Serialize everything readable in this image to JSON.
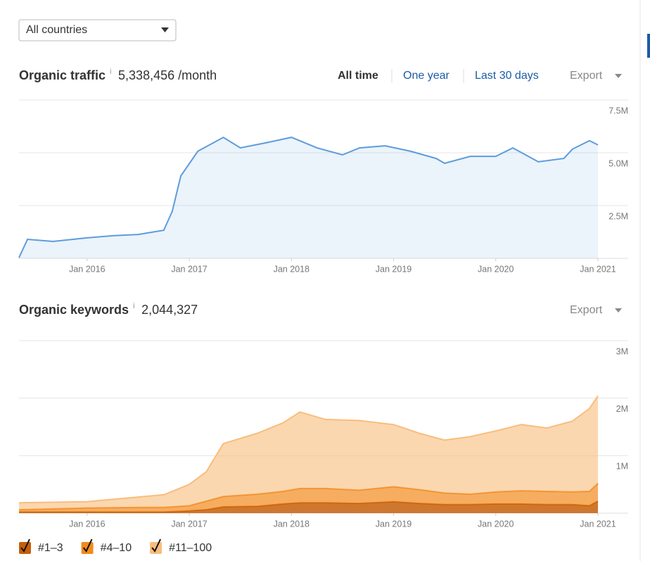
{
  "filter": {
    "country": "All countries"
  },
  "chart_data": [
    {
      "type": "area",
      "title": "Organic traffic",
      "info": "i",
      "summary": "5,338,456 /month",
      "range_options": [
        "All time",
        "One year",
        "Last 30 days"
      ],
      "selected_range": 0,
      "export": "Export",
      "x": [
        "2015-05",
        "2015-06",
        "2015-09",
        "2016-01",
        "2016-04",
        "2016-07",
        "2016-10",
        "2016-11",
        "2016-12",
        "2017-02",
        "2017-05",
        "2017-07",
        "2017-10",
        "2018-01",
        "2018-04",
        "2018-07",
        "2018-09",
        "2018-12",
        "2019-03",
        "2019-06",
        "2019-07",
        "2019-10",
        "2020-01",
        "2020-03",
        "2020-06",
        "2020-09",
        "2020-10",
        "2020-12",
        "2021-01"
      ],
      "series": [
        {
          "name": "Organic traffic",
          "color": "#5d9cdb",
          "values": [
            30000,
            900000,
            800000,
            970000,
            1070000,
            1130000,
            1330000,
            2230000,
            3900000,
            5070000,
            5730000,
            5230000,
            5470000,
            5730000,
            5230000,
            4900000,
            5230000,
            5330000,
            5070000,
            4730000,
            4500000,
            4830000,
            4830000,
            5230000,
            4570000,
            4730000,
            5170000,
            5570000,
            5370000
          ]
        }
      ],
      "xlim": [
        "2015-05",
        "2021-01"
      ],
      "xticks": [
        {
          "value": "2016-01",
          "label": "Jan 2016"
        },
        {
          "value": "2017-01",
          "label": "Jan 2017"
        },
        {
          "value": "2018-01",
          "label": "Jan 2018"
        },
        {
          "value": "2019-01",
          "label": "Jan 2019"
        },
        {
          "value": "2020-01",
          "label": "Jan 2020"
        },
        {
          "value": "2021-01",
          "label": "Jan 2021"
        }
      ],
      "ylim": [
        0,
        7500000
      ],
      "yticks": [
        {
          "value": 2500000,
          "label": "2.5M"
        },
        {
          "value": 5000000,
          "label": "5.0M"
        },
        {
          "value": 7500000,
          "label": "7.5M"
        }
      ],
      "grid": true
    },
    {
      "type": "stacked_area",
      "title": "Organic keywords",
      "info": "i",
      "summary": "2,044,327",
      "export": "Export",
      "x": [
        "2015-05",
        "2016-01",
        "2016-07",
        "2016-10",
        "2017-01",
        "2017-03",
        "2017-05",
        "2017-09",
        "2017-12",
        "2018-02",
        "2018-05",
        "2018-09",
        "2019-01",
        "2019-04",
        "2019-07",
        "2019-10",
        "2020-01",
        "2020-04",
        "2020-07",
        "2020-10",
        "2020-12",
        "2021-01"
      ],
      "series": [
        {
          "name": "#1–3",
          "color": "#c65f0a",
          "values": [
            20000,
            20000,
            20000,
            20000,
            40000,
            60000,
            110000,
            120000,
            160000,
            180000,
            180000,
            170000,
            200000,
            170000,
            150000,
            150000,
            160000,
            160000,
            150000,
            150000,
            130000,
            210000
          ]
        },
        {
          "name": "#4–10",
          "color": "#f28a1d",
          "values": [
            40000,
            70000,
            80000,
            80000,
            90000,
            150000,
            180000,
            210000,
            220000,
            250000,
            250000,
            230000,
            260000,
            240000,
            200000,
            180000,
            210000,
            230000,
            230000,
            220000,
            250000,
            310000
          ]
        },
        {
          "name": "#11–100",
          "color": "#f9bd7c",
          "values": [
            120000,
            110000,
            180000,
            220000,
            370000,
            510000,
            920000,
            1060000,
            1190000,
            1330000,
            1200000,
            1210000,
            1080000,
            980000,
            920000,
            1000000,
            1060000,
            1150000,
            1100000,
            1230000,
            1440000,
            1520000
          ]
        }
      ],
      "xlim": [
        "2015-05",
        "2021-01"
      ],
      "xticks": [
        {
          "value": "2016-01",
          "label": "Jan 2016"
        },
        {
          "value": "2017-01",
          "label": "Jan 2017"
        },
        {
          "value": "2018-01",
          "label": "Jan 2018"
        },
        {
          "value": "2019-01",
          "label": "Jan 2019"
        },
        {
          "value": "2020-01",
          "label": "Jan 2020"
        },
        {
          "value": "2021-01",
          "label": "Jan 2021"
        }
      ],
      "ylim": [
        0,
        3000000
      ],
      "yticks": [
        {
          "value": 1000000,
          "label": "1M"
        },
        {
          "value": 2000000,
          "label": "2M"
        },
        {
          "value": 3000000,
          "label": "3M"
        }
      ],
      "grid": true
    }
  ]
}
